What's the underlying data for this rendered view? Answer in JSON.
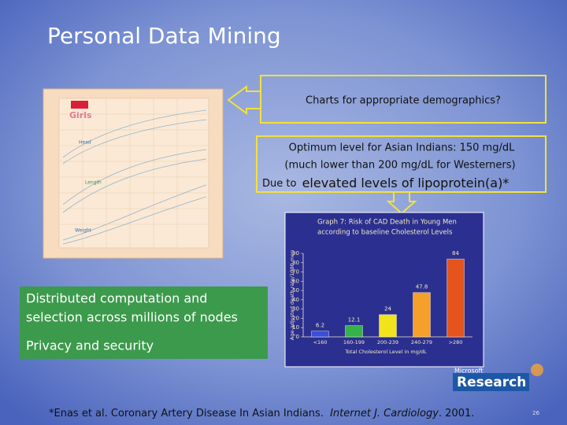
{
  "title": "Personal Data Mining",
  "callouts": [
    {
      "text": "Charts for appropriate demographics?"
    },
    {
      "lines": [
        "Optimum level for Asian Indians: 150 mg/dL",
        "(much lower than 200 mg/dL for Westerners)"
      ],
      "lead": "Due to",
      "emphasis": "elevated levels of lipoprotein(a)*"
    }
  ],
  "growth_chart": {
    "title": "Girls",
    "labels": [
      "Head",
      "Length",
      "Weight"
    ]
  },
  "green_box": {
    "items": [
      "Distributed computation and",
      "selection across millions of nodes",
      "Privacy and security"
    ]
  },
  "risk_chart": {
    "title": [
      "Graph 7: Risk of CAD Death in Young Men",
      "according to baseline Cholesterol Levels"
    ],
    "y_label": "Age-adjusted death rate/1000 men",
    "x_label": "Total Cholesterol Level in mg/dL",
    "categories": [
      "<160",
      "160-199",
      "200-239",
      "240-279",
      ">280"
    ],
    "values": [
      6.2,
      12.1,
      24,
      47.8,
      84
    ],
    "colors": [
      "#3a4fd6",
      "#36b24a",
      "#f2e41a",
      "#f6a02a",
      "#e5541c"
    ],
    "ylim": [
      0,
      90
    ],
    "yticks": [
      0,
      10,
      20,
      30,
      40,
      50,
      60,
      70,
      80,
      90
    ]
  },
  "logo": {
    "small": "Microsoft",
    "large": "Research"
  },
  "footnote": {
    "plain": "*Enas et al. Coronary Artery Disease In Asian Indians.",
    "italic": "Internet J. Cardiology",
    "end": ". 2001."
  },
  "page_number": "26"
}
